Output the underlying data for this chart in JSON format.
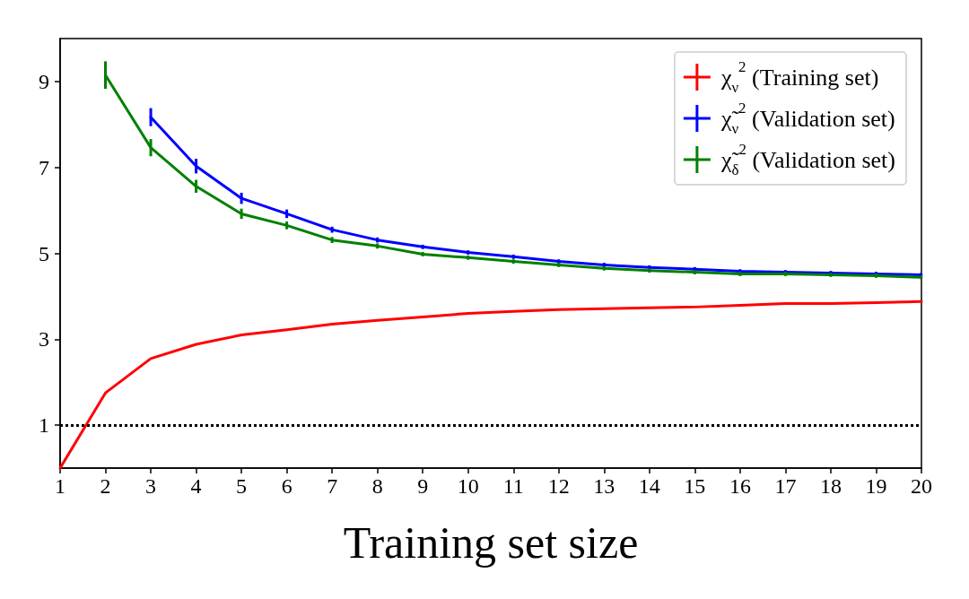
{
  "chart_data": {
    "type": "line",
    "xlabel": "Training set size",
    "x": [
      1,
      2,
      3,
      4,
      5,
      6,
      7,
      8,
      9,
      10,
      11,
      12,
      13,
      14,
      15,
      16,
      17,
      18,
      19,
      20
    ],
    "series": [
      {
        "name": "χ$_{ν}$$^{2}$ (Training set)",
        "color": "#ff0000",
        "values": [
          0.0,
          1.75,
          2.55,
          2.88,
          3.1,
          3.22,
          3.35,
          3.44,
          3.52,
          3.6,
          3.65,
          3.69,
          3.71,
          3.73,
          3.75,
          3.79,
          3.83,
          3.83,
          3.85,
          3.88
        ]
      },
      {
        "name": "χ̃$_{ν}$$^{2}$ (Validation set)",
        "color": "#0000ff",
        "values": [
          null,
          null,
          8.17,
          7.03,
          6.28,
          5.92,
          5.55,
          5.31,
          5.15,
          5.02,
          4.92,
          4.81,
          4.73,
          4.67,
          4.63,
          4.58,
          4.56,
          4.54,
          4.52,
          4.5
        ],
        "errors": [
          null,
          null,
          0.21,
          0.17,
          0.13,
          0.1,
          0.07,
          0.06,
          0.05,
          0.05,
          0.05,
          0.05,
          0.05,
          0.05,
          0.05,
          0.05,
          0.05,
          0.05,
          0.05,
          0.05
        ]
      },
      {
        "name": "χ̃$_{δ}$$^{2}$ (Validation set)",
        "color": "#008000",
        "values": [
          null,
          9.15,
          7.46,
          6.56,
          5.92,
          5.65,
          5.31,
          5.17,
          4.98,
          4.9,
          4.81,
          4.73,
          4.65,
          4.6,
          4.56,
          4.52,
          4.52,
          4.5,
          4.48,
          4.44
        ],
        "errors": [
          null,
          0.32,
          0.2,
          0.15,
          0.12,
          0.09,
          0.07,
          0.06,
          0.05,
          0.05,
          0.05,
          0.05,
          0.05,
          0.05,
          0.05,
          0.05,
          0.05,
          0.05,
          0.05,
          0.05
        ]
      }
    ],
    "xlim": [
      1,
      20
    ],
    "xticks": [
      1,
      2,
      3,
      4,
      5,
      6,
      7,
      8,
      9,
      10,
      11,
      12,
      13,
      14,
      15,
      16,
      17,
      18,
      19,
      20
    ],
    "ylim": [
      0,
      10
    ],
    "yticks": [
      1,
      3,
      5,
      7,
      9
    ],
    "ref_lines": [
      {
        "axis": "y",
        "value": 1,
        "color": "#000000",
        "line_style": "dotted"
      }
    ],
    "grid": false,
    "legend": "top right",
    "marker": "none",
    "line_style": "solid"
  }
}
